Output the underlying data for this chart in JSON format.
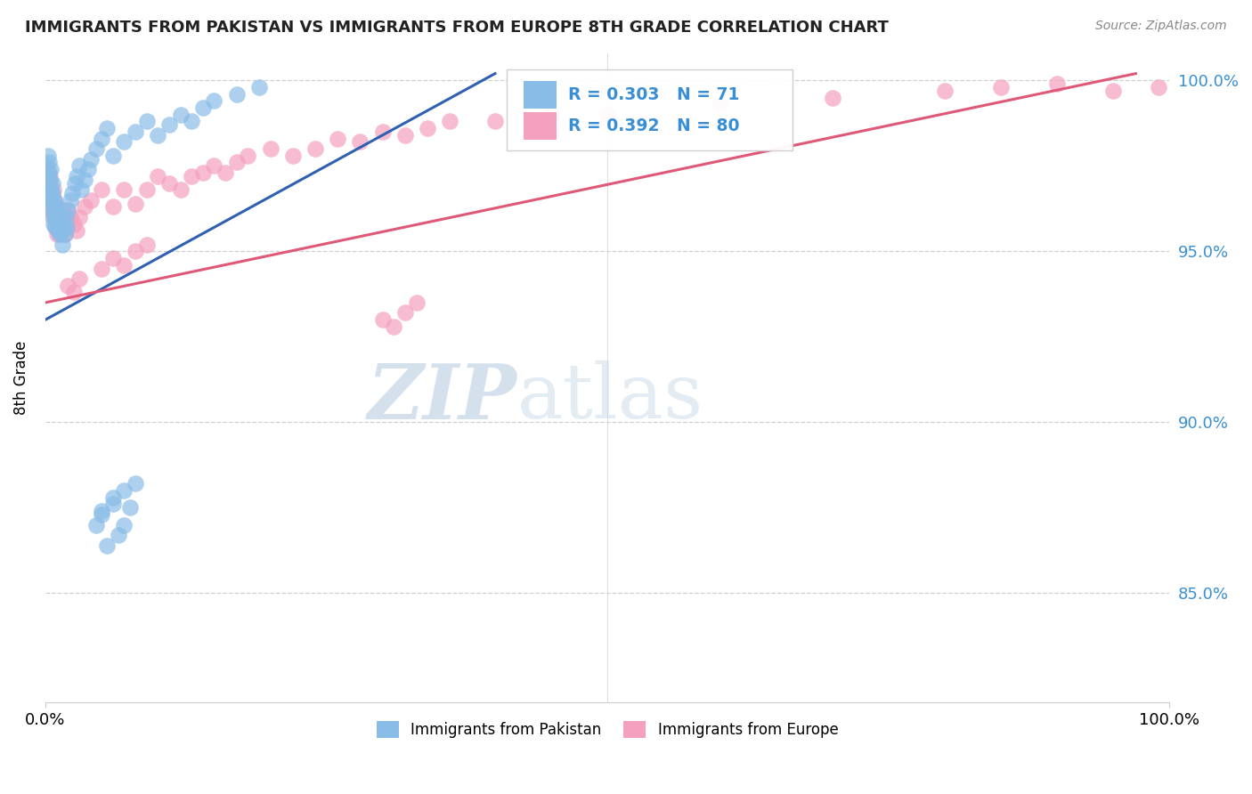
{
  "title": "IMMIGRANTS FROM PAKISTAN VS IMMIGRANTS FROM EUROPE 8TH GRADE CORRELATION CHART",
  "source": "Source: ZipAtlas.com",
  "ylabel": "8th Grade",
  "xmin": 0.0,
  "xmax": 1.0,
  "ymin": 0.818,
  "ymax": 1.008,
  "ytick_values": [
    0.85,
    0.9,
    0.95,
    1.0
  ],
  "ytick_labels": [
    "85.0%",
    "90.0%",
    "95.0%",
    "100.0%"
  ],
  "pakistan_color": "#89bde8",
  "europe_color": "#f5a0be",
  "pakistan_line_color": "#3060b0",
  "europe_line_color": "#e05878",
  "pakistan_R": 0.303,
  "pakistan_N": 71,
  "europe_R": 0.392,
  "europe_N": 80,
  "legend_label_pakistan": "Immigrants from Pakistan",
  "legend_label_europe": "Immigrants from Europe",
  "pakistan_x": [
    0.001,
    0.001,
    0.002,
    0.002,
    0.002,
    0.003,
    0.003,
    0.003,
    0.004,
    0.004,
    0.005,
    0.005,
    0.005,
    0.006,
    0.006,
    0.006,
    0.007,
    0.007,
    0.008,
    0.008,
    0.009,
    0.009,
    0.01,
    0.01,
    0.011,
    0.011,
    0.012,
    0.013,
    0.014,
    0.015,
    0.015,
    0.016,
    0.017,
    0.018,
    0.019,
    0.02,
    0.022,
    0.024,
    0.026,
    0.028,
    0.03,
    0.032,
    0.035,
    0.038,
    0.04,
    0.045,
    0.05,
    0.055,
    0.06,
    0.07,
    0.08,
    0.09,
    0.1,
    0.11,
    0.12,
    0.13,
    0.14,
    0.15,
    0.17,
    0.19,
    0.05,
    0.06,
    0.07,
    0.08,
    0.055,
    0.065,
    0.045,
    0.05,
    0.06,
    0.07,
    0.075
  ],
  "pakistan_y": [
    0.97,
    0.975,
    0.972,
    0.978,
    0.968,
    0.973,
    0.976,
    0.965,
    0.971,
    0.966,
    0.968,
    0.974,
    0.963,
    0.97,
    0.967,
    0.96,
    0.964,
    0.958,
    0.965,
    0.961,
    0.962,
    0.957,
    0.963,
    0.959,
    0.961,
    0.956,
    0.958,
    0.955,
    0.96,
    0.956,
    0.952,
    0.958,
    0.955,
    0.96,
    0.957,
    0.962,
    0.965,
    0.967,
    0.97,
    0.972,
    0.975,
    0.968,
    0.971,
    0.974,
    0.977,
    0.98,
    0.983,
    0.986,
    0.978,
    0.982,
    0.985,
    0.988,
    0.984,
    0.987,
    0.99,
    0.988,
    0.992,
    0.994,
    0.996,
    0.998,
    0.874,
    0.878,
    0.88,
    0.882,
    0.864,
    0.867,
    0.87,
    0.873,
    0.876,
    0.87,
    0.875
  ],
  "europe_x": [
    0.001,
    0.001,
    0.002,
    0.002,
    0.003,
    0.003,
    0.004,
    0.004,
    0.005,
    0.005,
    0.006,
    0.006,
    0.007,
    0.007,
    0.008,
    0.008,
    0.009,
    0.009,
    0.01,
    0.01,
    0.011,
    0.012,
    0.013,
    0.014,
    0.015,
    0.016,
    0.017,
    0.018,
    0.02,
    0.022,
    0.025,
    0.028,
    0.03,
    0.035,
    0.04,
    0.05,
    0.06,
    0.07,
    0.08,
    0.09,
    0.1,
    0.11,
    0.12,
    0.13,
    0.14,
    0.15,
    0.16,
    0.17,
    0.18,
    0.2,
    0.22,
    0.24,
    0.26,
    0.28,
    0.3,
    0.32,
    0.34,
    0.36,
    0.4,
    0.45,
    0.5,
    0.6,
    0.7,
    0.8,
    0.85,
    0.9,
    0.95,
    0.99,
    0.02,
    0.025,
    0.03,
    0.05,
    0.06,
    0.07,
    0.08,
    0.09,
    0.3,
    0.31,
    0.32,
    0.33
  ],
  "europe_y": [
    0.968,
    0.972,
    0.965,
    0.97,
    0.967,
    0.963,
    0.972,
    0.966,
    0.964,
    0.969,
    0.966,
    0.961,
    0.968,
    0.963,
    0.965,
    0.96,
    0.962,
    0.957,
    0.959,
    0.955,
    0.958,
    0.96,
    0.955,
    0.958,
    0.962,
    0.958,
    0.955,
    0.958,
    0.962,
    0.96,
    0.958,
    0.956,
    0.96,
    0.963,
    0.965,
    0.968,
    0.963,
    0.968,
    0.964,
    0.968,
    0.972,
    0.97,
    0.968,
    0.972,
    0.973,
    0.975,
    0.973,
    0.976,
    0.978,
    0.98,
    0.978,
    0.98,
    0.983,
    0.982,
    0.985,
    0.984,
    0.986,
    0.988,
    0.988,
    0.99,
    0.99,
    0.993,
    0.995,
    0.997,
    0.998,
    0.999,
    0.997,
    0.998,
    0.94,
    0.938,
    0.942,
    0.945,
    0.948,
    0.946,
    0.95,
    0.952,
    0.93,
    0.928,
    0.932,
    0.935
  ]
}
